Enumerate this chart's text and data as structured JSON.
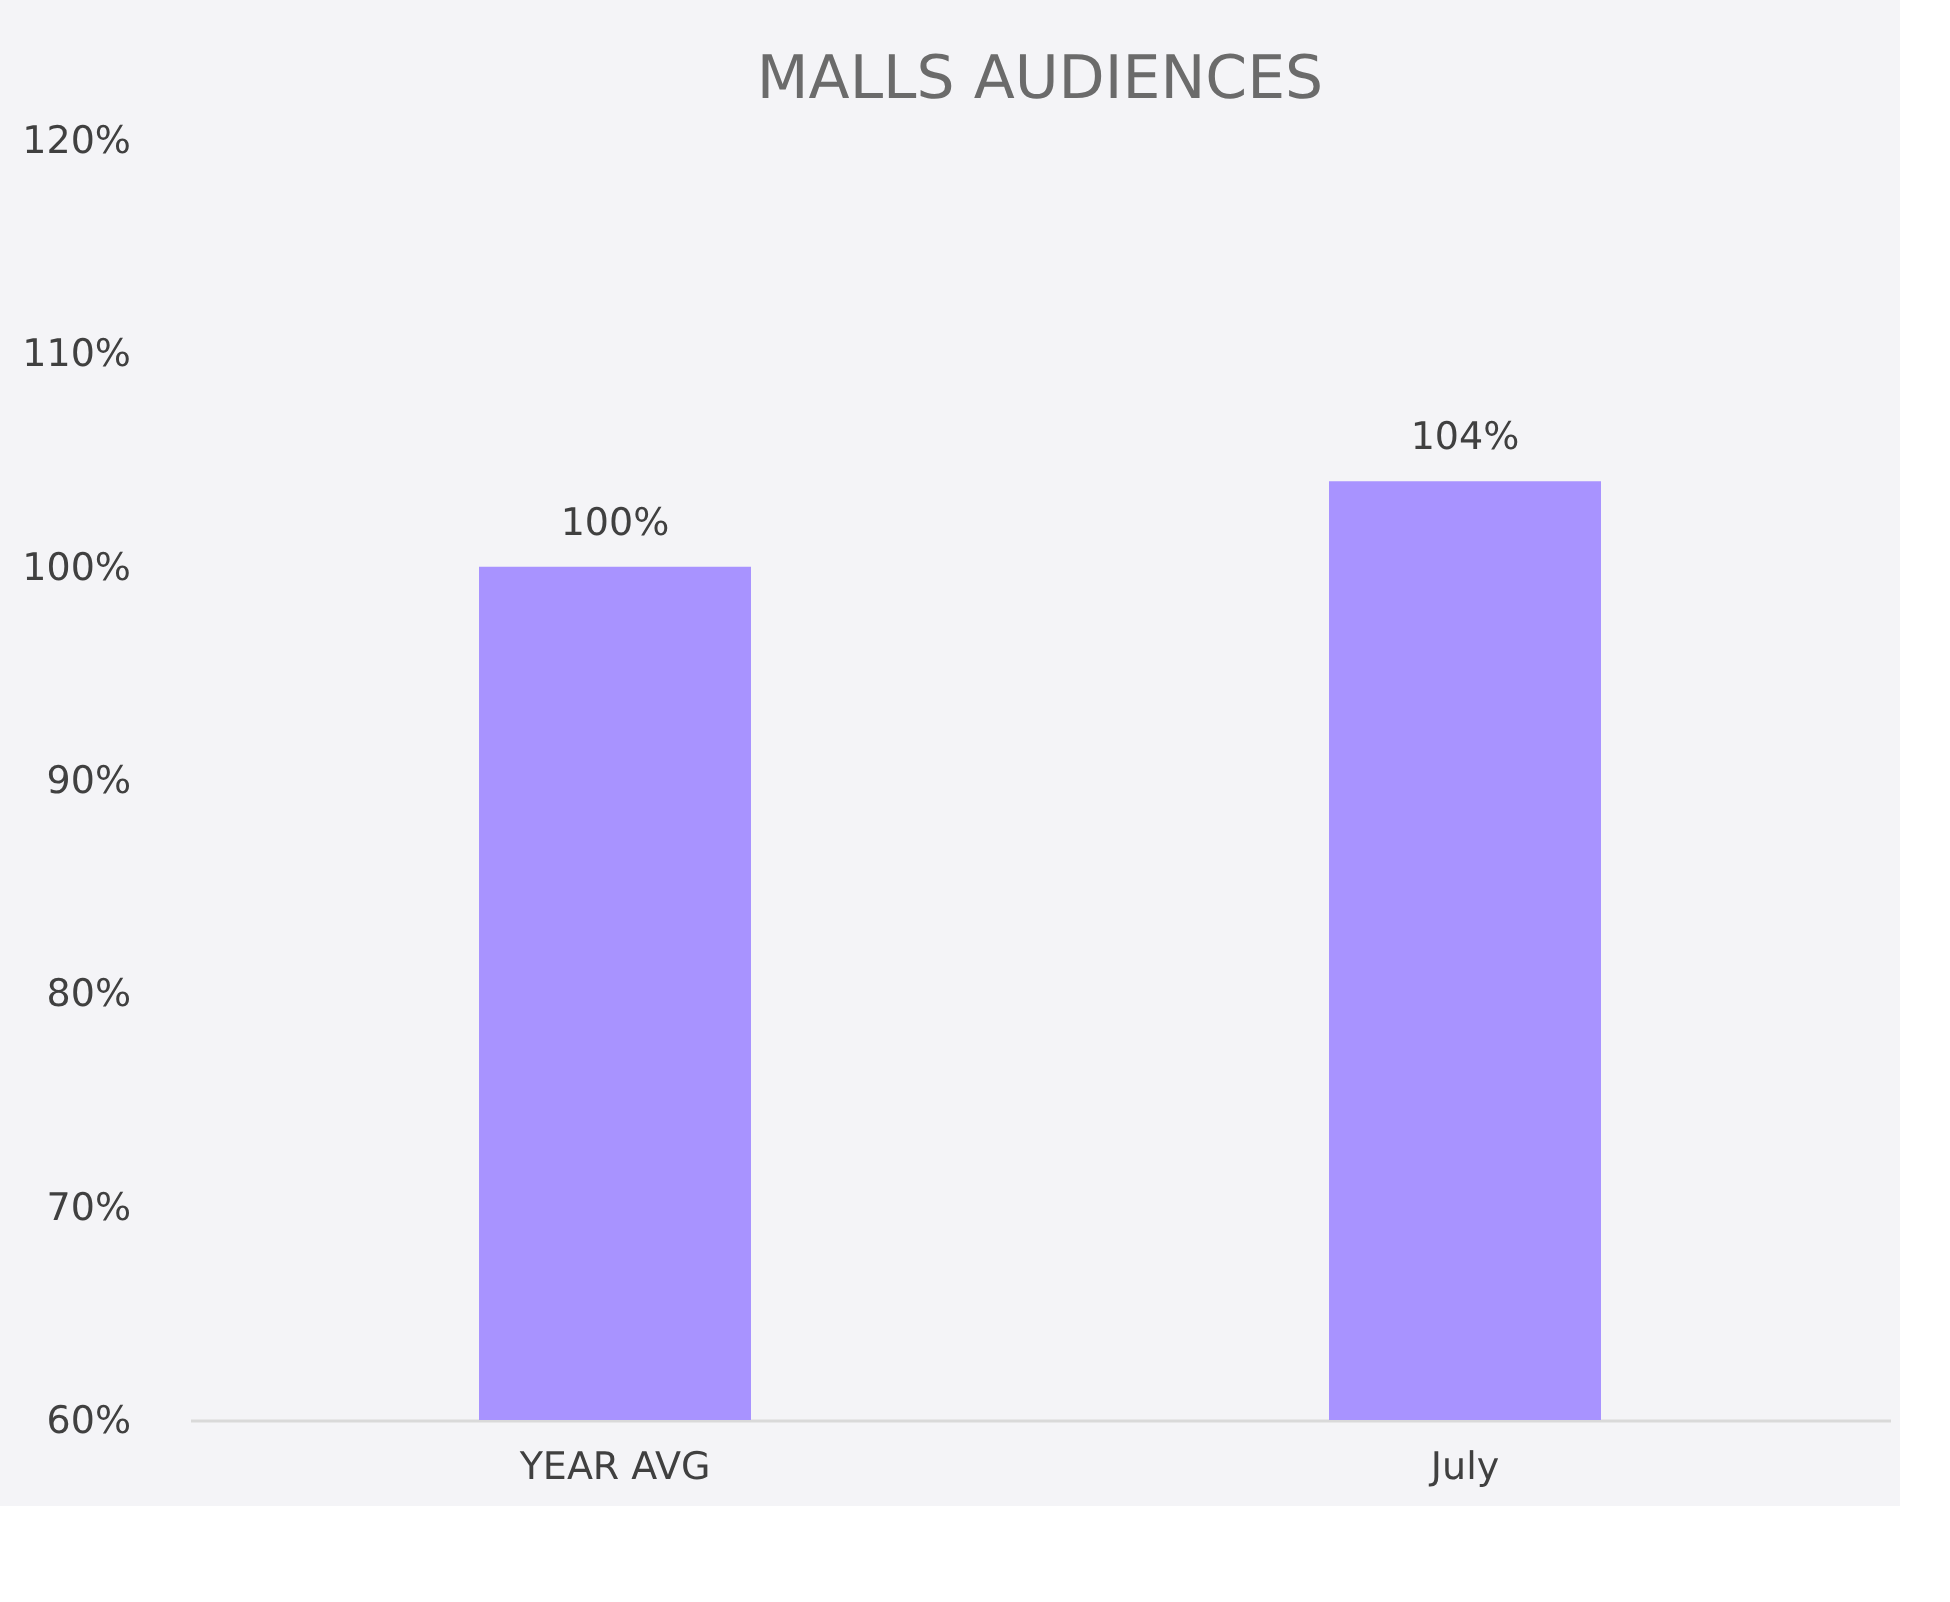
{
  "chart_data": {
    "type": "bar",
    "title": "MALLS AUDIENCES",
    "categories": [
      "YEAR AVG",
      "July"
    ],
    "values": [
      100,
      104
    ],
    "value_labels": [
      "100%",
      "104%"
    ],
    "color": "#a893ff",
    "ylim": [
      60,
      120
    ],
    "yticks": [
      {
        "value": 60,
        "label": "60%"
      },
      {
        "value": 70,
        "label": "70%"
      },
      {
        "value": 80,
        "label": "80%"
      },
      {
        "value": 90,
        "label": "90%"
      },
      {
        "value": 100,
        "label": "100%"
      },
      {
        "value": 110,
        "label": "110%"
      },
      {
        "value": 120,
        "label": "120%"
      }
    ],
    "grid": false
  }
}
